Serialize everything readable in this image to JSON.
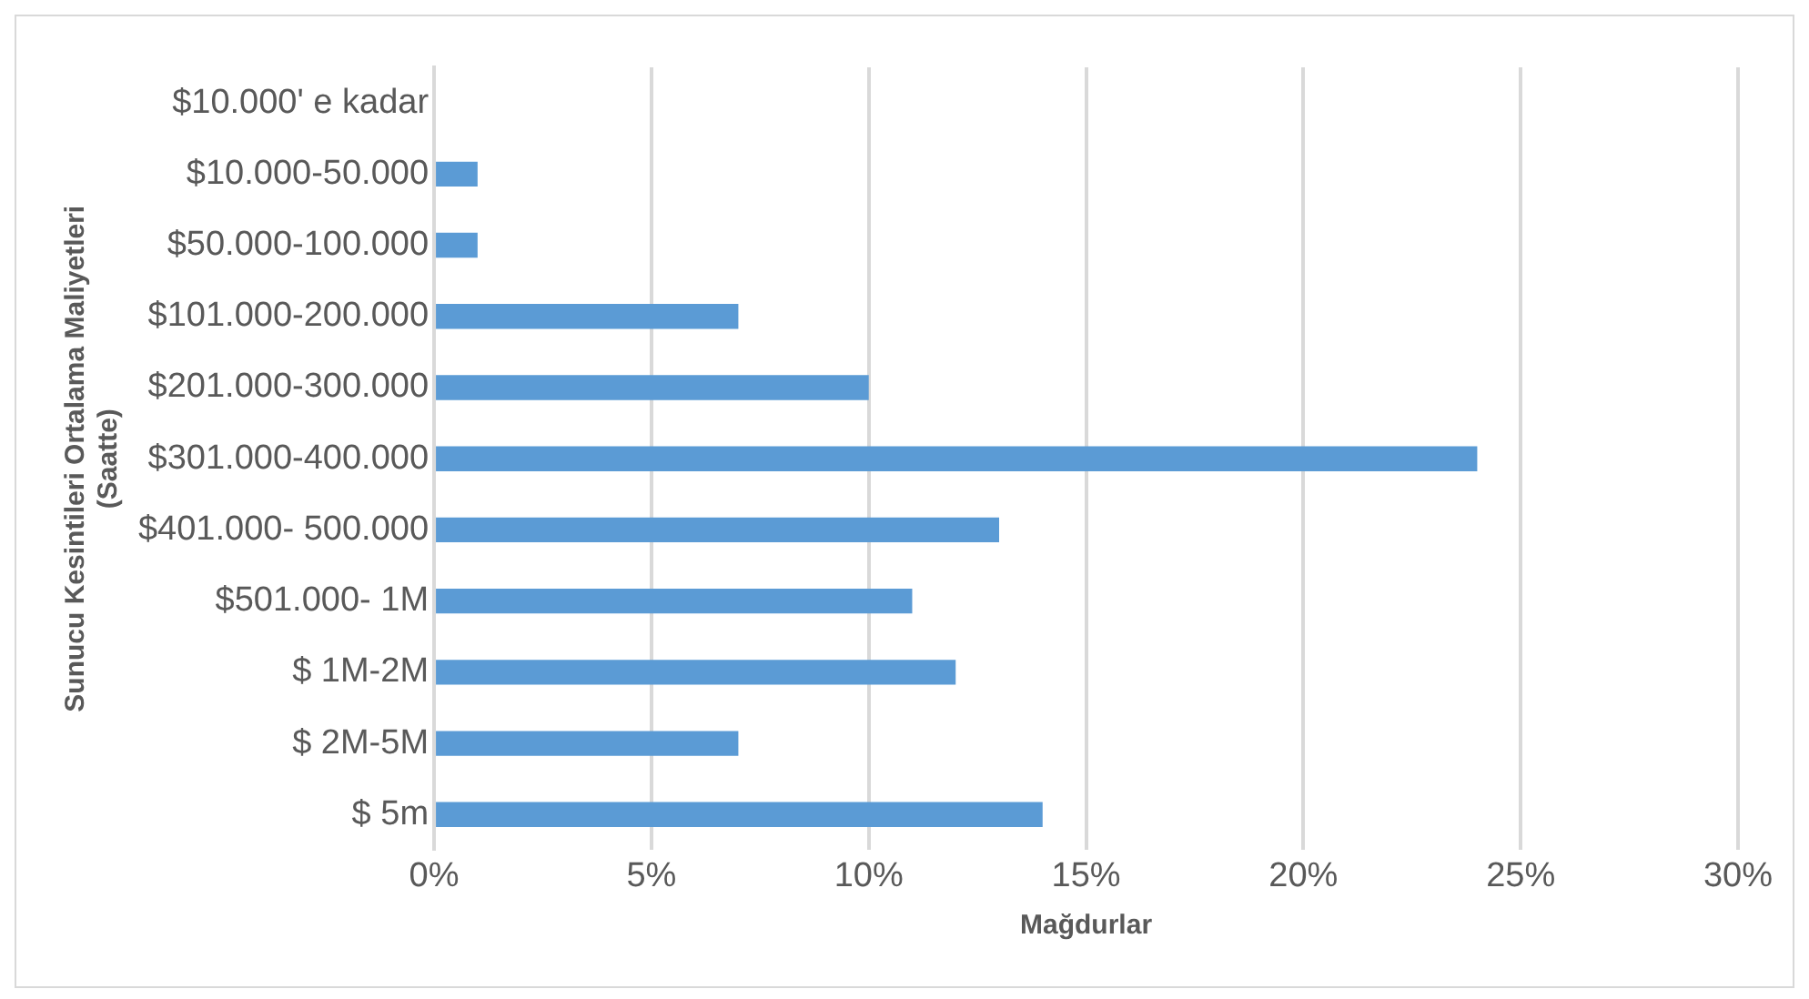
{
  "chart_data": {
    "type": "bar",
    "orientation": "horizontal",
    "categories": [
      "$10.000' e kadar",
      "$10.000-50.000",
      "$50.000-100.000",
      "$101.000-200.000",
      "$201.000-300.000",
      "$301.000-400.000",
      "$401.000- 500.000",
      "$501.000- 1M",
      "$ 1M-2M",
      "$ 2M-5M",
      "$ 5m"
    ],
    "values": [
      0,
      1,
      1,
      7,
      10,
      24,
      13,
      11,
      12,
      7,
      14
    ],
    "color": "#5b9bd5",
    "xlim": [
      0,
      30
    ],
    "xticks": [
      {
        "value": 0,
        "label": "0%"
      },
      {
        "value": 5,
        "label": "5%"
      },
      {
        "value": 10,
        "label": "10%"
      },
      {
        "value": 15,
        "label": "15%"
      },
      {
        "value": 20,
        "label": "20%"
      },
      {
        "value": 25,
        "label": "25%"
      },
      {
        "value": 30,
        "label": "30%"
      }
    ],
    "xlabel": "Mağdurlar",
    "ylabel": "Sunucu Kesintileri Ortalama Maliyetleri\n(Saatte)",
    "grid": "x",
    "legend": false
  }
}
